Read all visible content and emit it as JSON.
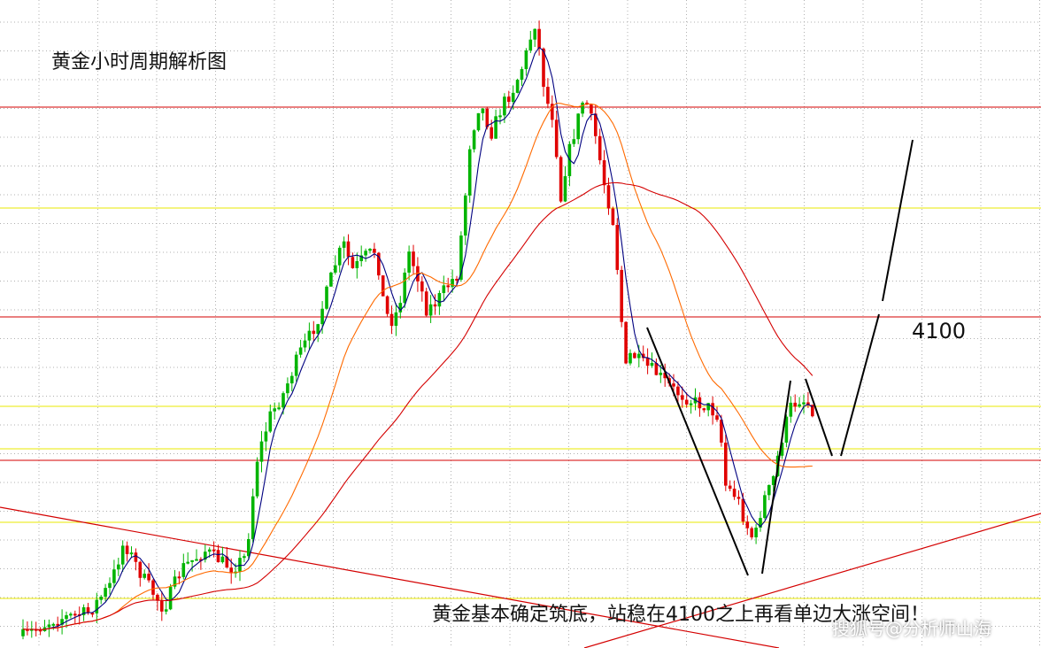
{
  "title": "黄金小时周期解析图",
  "level_label": "4100",
  "caption": "黄金基本确定筑底，站稳在4100之上再看单边大涨空间！",
  "watermark": "搜狐号@分析师山海",
  "colors": {
    "background": "#ffffff",
    "bull_candle": "#00b400",
    "bear_candle": "#e00000",
    "ma_fast": "#000080",
    "ma_mid": "#ff6a00",
    "ma_slow": "#d40000",
    "red_level": "#d40000",
    "yellow_level": "#e8e800",
    "grid": "#b0b0b0",
    "annotation_line": "#000000",
    "trendline": "#d40000"
  },
  "chart_data": {
    "type": "candlestick",
    "title": "黄金小时周期解析图",
    "xlabel": "",
    "ylabel": "",
    "grid": true,
    "annotations": [
      "4100",
      "黄金基本确定筑底，站稳在4100之上再看单边大涨空间！"
    ],
    "series": [
      {
        "type": "candlestick",
        "values": []
      },
      {
        "type": "line",
        "values": []
      },
      {
        "type": "line",
        "values": []
      },
      {
        "type": "line",
        "values": []
      }
    ]
  }
}
